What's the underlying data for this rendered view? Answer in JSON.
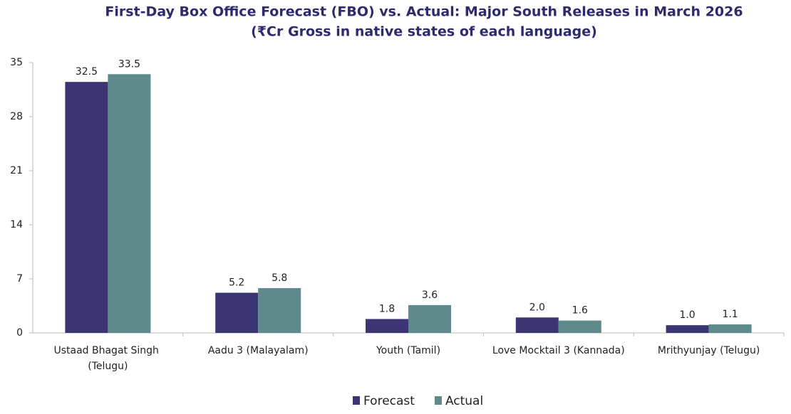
{
  "chart_data": {
    "type": "bar",
    "title": "First-Day Box Office Forecast (FBO) vs. Actual: Major South Releases in March 2026",
    "subtitle": "(₹Cr Gross in native states of each language)",
    "categories": [
      "Ustaad Bhagat Singh (Telugu)",
      "Aadu 3 (Malayalam)",
      "Youth (Tamil)",
      "Love Mocktail 3 (Kannada)",
      "Mrithyunjay (Telugu)"
    ],
    "series": [
      {
        "name": "Forecast",
        "color": "#3b3673",
        "values": [
          32.5,
          5.2,
          1.8,
          2,
          1
        ],
        "value_labels": [
          "32.5",
          "5.2",
          "1.8",
          "2.0",
          "1.0"
        ]
      },
      {
        "name": "Actual",
        "color": "#5f8a8b",
        "values": [
          33.5,
          5.8,
          3.6,
          1.6,
          1.1
        ],
        "value_labels": [
          "33.5",
          "5.8",
          "3.6",
          "1.6",
          "1.1"
        ]
      }
    ],
    "ylim": [
      0,
      35
    ],
    "yticks": [
      0,
      7,
      14,
      21,
      28,
      35
    ],
    "grid": false,
    "legend": "bottom"
  }
}
